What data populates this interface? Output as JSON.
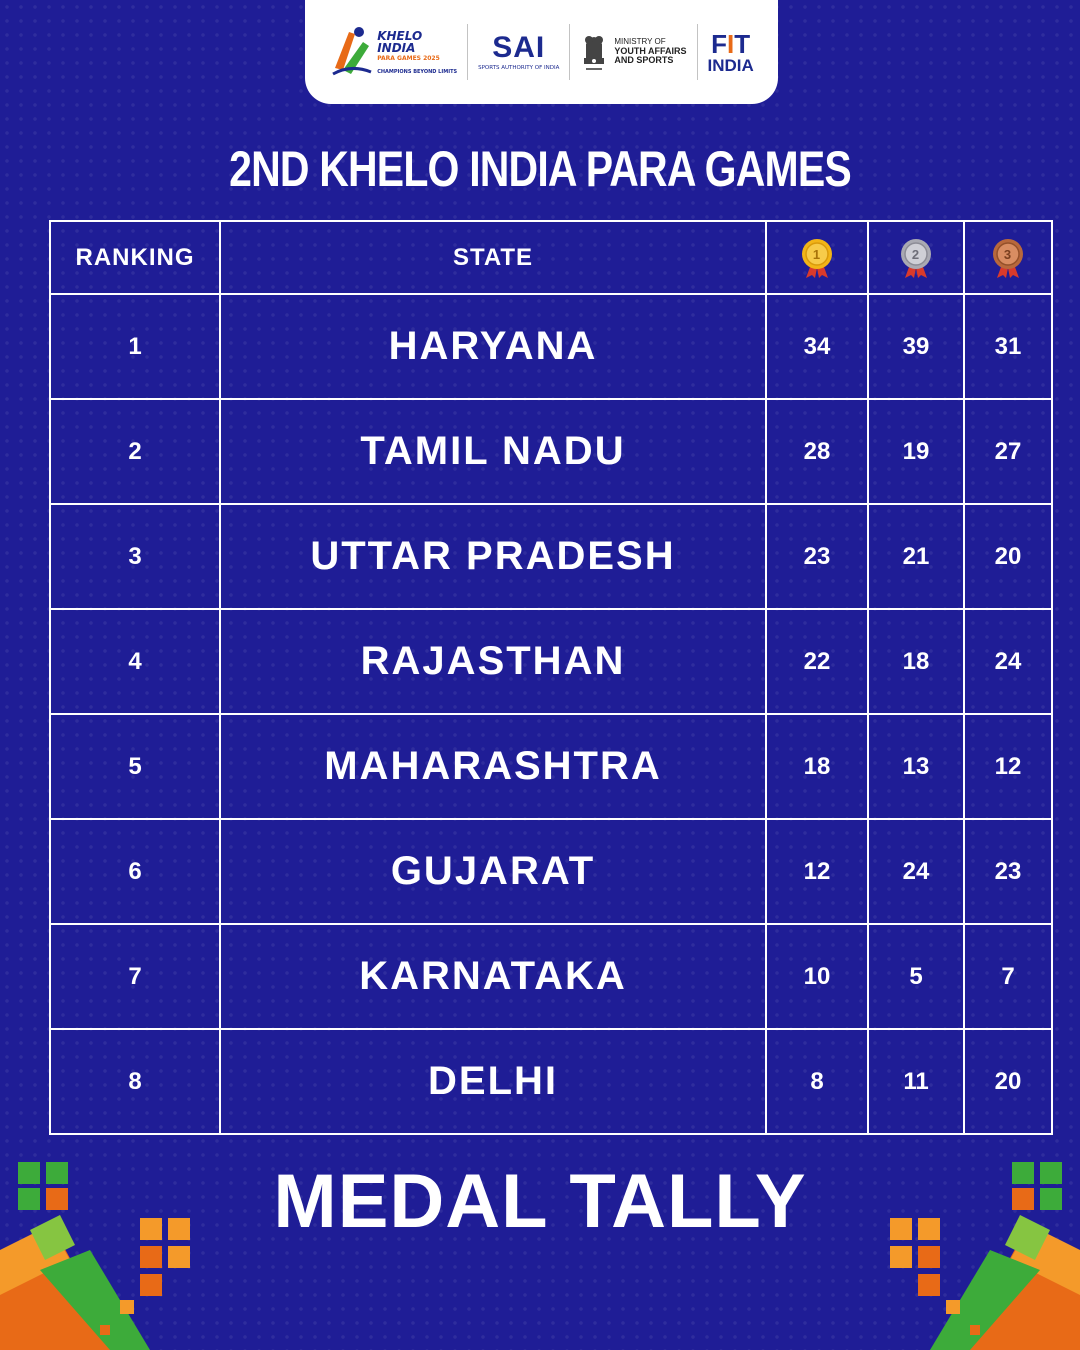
{
  "logos": {
    "khelo": {
      "line1": "KHELO",
      "line2": "INDIA",
      "line3": "PARA GAMES 2025",
      "tagline": "CHAMPIONS BEYOND LIMITS"
    },
    "sai": {
      "name": "SAI",
      "subtitle": "SPORTS AUTHORITY OF INDIA"
    },
    "ministry": {
      "line1": "MINISTRY OF",
      "line2": "YOUTH AFFAIRS",
      "line3": "AND SPORTS"
    },
    "fit_india": {
      "line1_a": "F",
      "line1_b": "I",
      "line1_c": "T",
      "line2": "INDIA"
    }
  },
  "title": "2ND KHELO INDIA PARA GAMES",
  "table": {
    "headers": {
      "ranking": "RANKING",
      "state": "STATE",
      "gold": "1",
      "silver": "2",
      "bronze": "3"
    },
    "rows": [
      {
        "rank": "1",
        "state": "HARYANA",
        "gold": "34",
        "silver": "39",
        "bronze": "31"
      },
      {
        "rank": "2",
        "state": "TAMIL NADU",
        "gold": "28",
        "silver": "19",
        "bronze": "27"
      },
      {
        "rank": "3",
        "state": "UTTAR PRADESH",
        "gold": "23",
        "silver": "21",
        "bronze": "20"
      },
      {
        "rank": "4",
        "state": "RAJASTHAN",
        "gold": "22",
        "silver": "18",
        "bronze": "24"
      },
      {
        "rank": "5",
        "state": "MAHARASHTRA",
        "gold": "18",
        "silver": "13",
        "bronze": "12"
      },
      {
        "rank": "6",
        "state": "GUJARAT",
        "gold": "12",
        "silver": "24",
        "bronze": "23"
      },
      {
        "rank": "7",
        "state": "KARNATAKA",
        "gold": "10",
        "silver": "5",
        "bronze": "7"
      },
      {
        "rank": "8",
        "state": "DELHI",
        "gold": "8",
        "silver": "11",
        "bronze": "20"
      }
    ]
  },
  "footer": "MEDAL TALLY",
  "colors": {
    "background": "#1f1d96",
    "gold": "#f2b417",
    "silver": "#b8b8c0",
    "bronze": "#c8794a",
    "accent_orange": "#e86a17",
    "accent_green": "#3dab3a"
  }
}
